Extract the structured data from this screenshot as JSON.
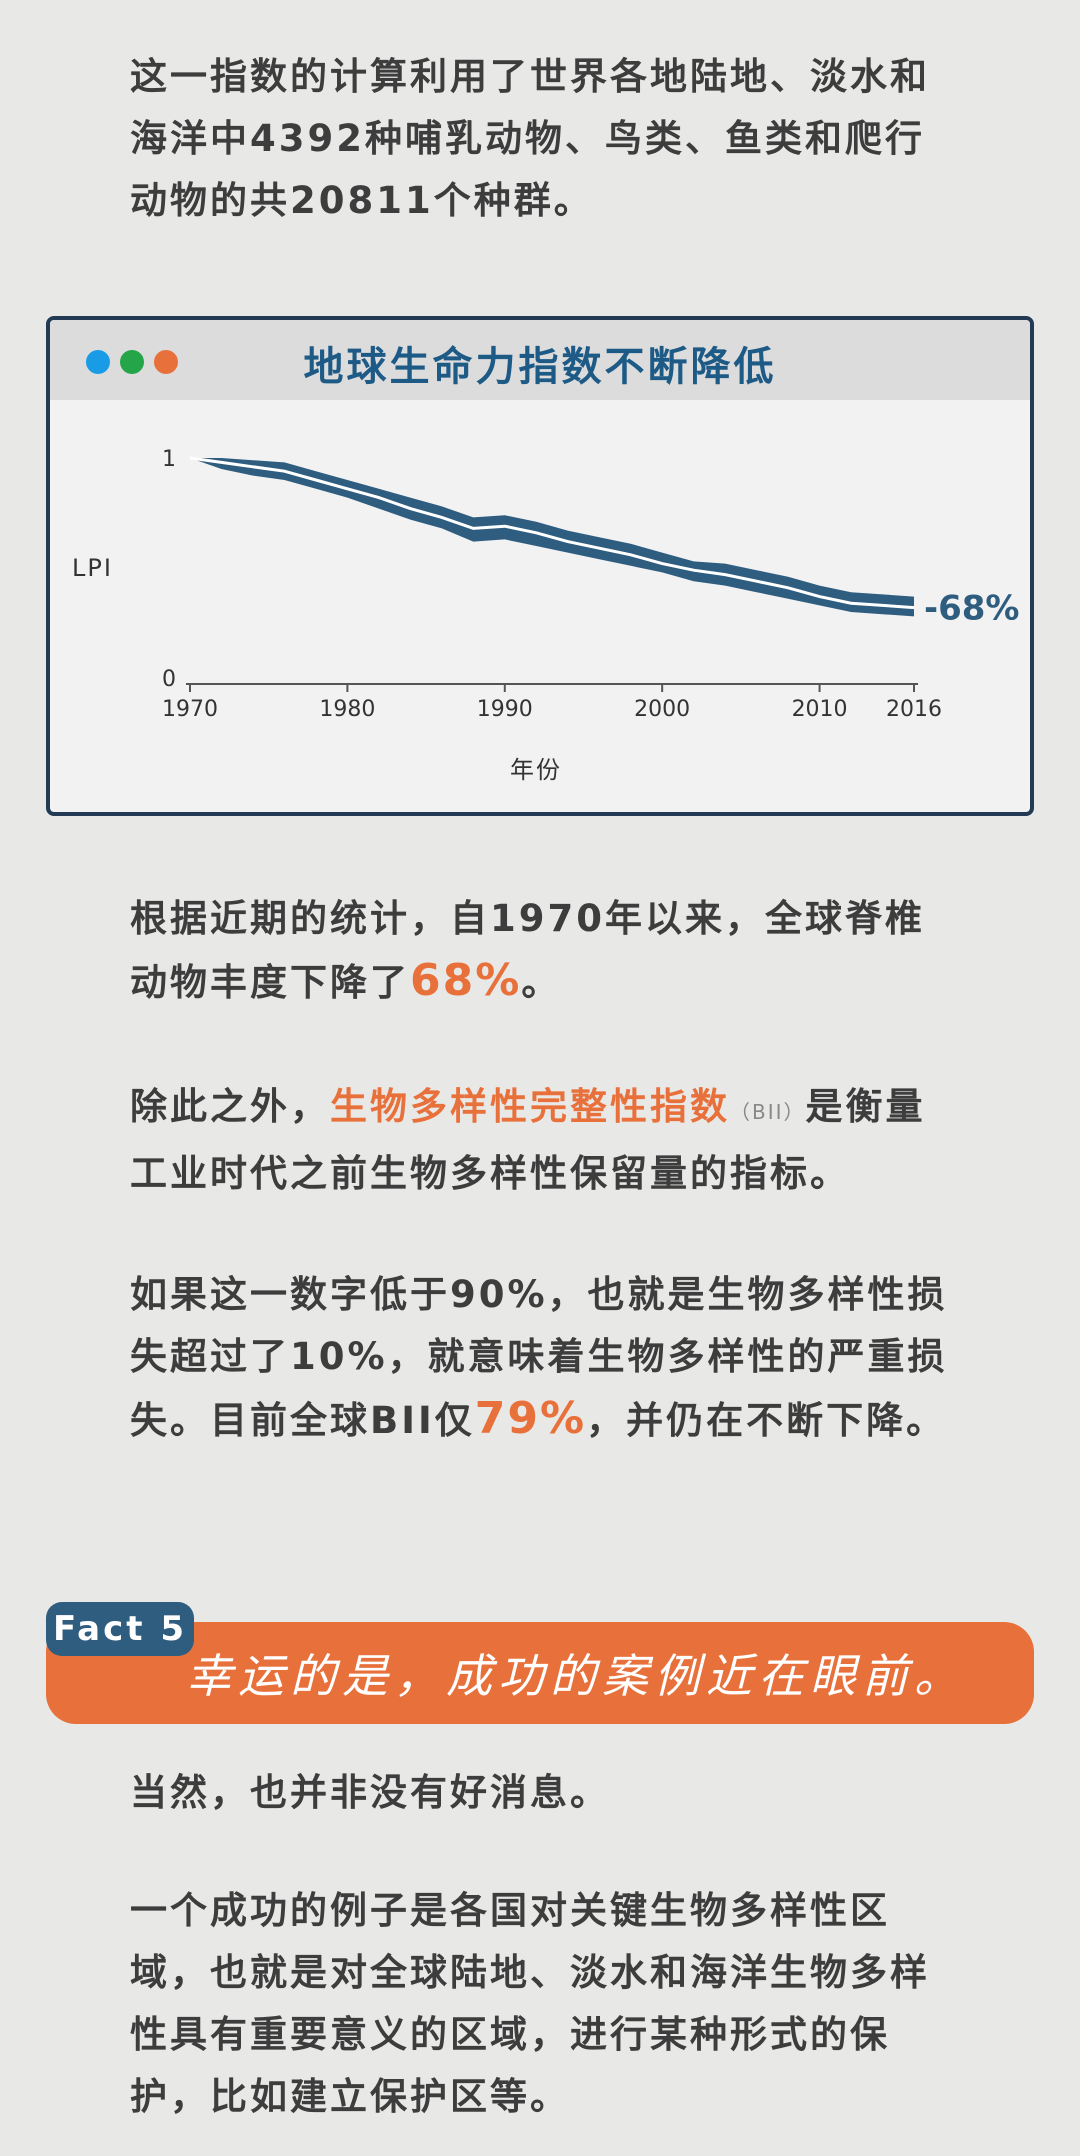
{
  "intro": {
    "text": "这一指数的计算利用了世界各地陆地、淡水和海洋中4392种哺乳动物、鸟类、鱼类和爬行动物的共20811个种群。"
  },
  "chart_window": {
    "title": "地球生命力指数不断降低",
    "dots": [
      "#1a9be6",
      "#23a548",
      "#e8703a"
    ]
  },
  "chart_data": {
    "type": "area",
    "ylabel": "LPI",
    "xlabel": "年份",
    "x_ticks": [
      1970,
      1980,
      1990,
      2000,
      2010,
      2016
    ],
    "y_ticks": [
      0,
      1
    ],
    "xlim": [
      1970,
      2016
    ],
    "ylim": [
      0,
      1
    ],
    "annotation": "-68%",
    "series": [
      {
        "x": [
          1970,
          1972,
          1974,
          1976,
          1978,
          1980,
          1982,
          1984,
          1986,
          1988,
          1990,
          1992,
          1994,
          1996,
          1998,
          2000,
          2002,
          2004,
          2006,
          2008,
          2010,
          2012,
          2014,
          2016
        ],
        "y": [
          1.0,
          0.98,
          0.96,
          0.94,
          0.9,
          0.86,
          0.82,
          0.77,
          0.73,
          0.68,
          0.69,
          0.66,
          0.62,
          0.59,
          0.56,
          0.52,
          0.49,
          0.47,
          0.44,
          0.41,
          0.37,
          0.34,
          0.33,
          0.32
        ],
        "lower": [
          1.0,
          0.95,
          0.92,
          0.9,
          0.86,
          0.82,
          0.77,
          0.72,
          0.68,
          0.62,
          0.63,
          0.6,
          0.57,
          0.54,
          0.51,
          0.48,
          0.44,
          0.42,
          0.39,
          0.36,
          0.33,
          0.3,
          0.29,
          0.28
        ],
        "upper": [
          1.0,
          1.0,
          0.99,
          0.98,
          0.94,
          0.9,
          0.86,
          0.82,
          0.78,
          0.73,
          0.74,
          0.71,
          0.67,
          0.64,
          0.61,
          0.57,
          0.53,
          0.52,
          0.49,
          0.46,
          0.42,
          0.39,
          0.38,
          0.37
        ]
      }
    ],
    "colors": {
      "band": "#2f5d80",
      "line": "#ffffff",
      "annotation": "#2f5d80"
    }
  },
  "paragraphs": {
    "p1_a": "根据近期的统计，自1970年以来，全球脊椎动物丰度下降了",
    "p1_hl": "68%",
    "p1_b": "。",
    "p2_a": "除此之外，",
    "p2_hl": "生物多样性完整性指数",
    "p2_abbr": "（BII）",
    "p2_b": "是衡量工业时代之前生物多样性保留量的指标。",
    "p3_a": "如果这一数字低于90%，也就是生物多样性损失超过了10%，就意味着生物多样性的严重损失。目前全球BII仅",
    "p3_hl": "79%",
    "p3_b": "，并仍在不断下降。"
  },
  "fact": {
    "label": "Fact 5",
    "text": "幸运的是，成功的案例近在眼前。"
  },
  "closing": {
    "p4": "当然，也并非没有好消息。",
    "p5": "一个成功的例子是各国对关键生物多样性区域，也就是对全球陆地、淡水和海洋生物多样性具有重要意义的区域，进行某种形式的保护，比如建立保护区等。"
  }
}
